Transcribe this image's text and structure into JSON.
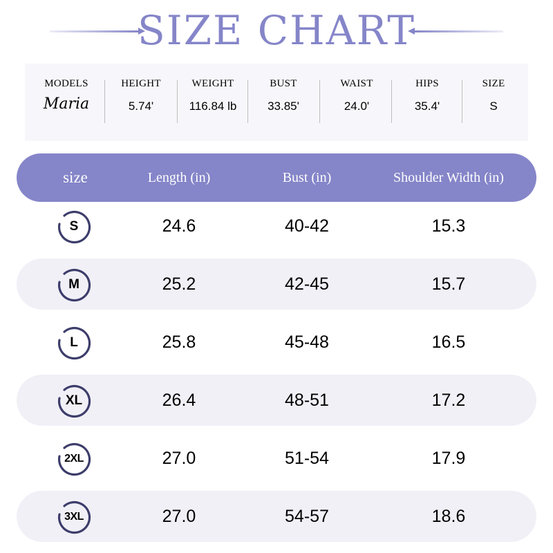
{
  "title": "SIZE CHART",
  "colors": {
    "accent": "#8585c9",
    "row_shade": "#f1f0f7",
    "badge_ring": "#3d3d6b"
  },
  "model": {
    "headers": [
      "MODELS",
      "HEIGHT",
      "WEIGHT",
      "BUST",
      "WAIST",
      "HIPS",
      "SIZE"
    ],
    "values": [
      "Maria",
      "5.74'",
      "116.84 lb",
      "33.85'",
      "24.0'",
      "35.4'",
      "S"
    ]
  },
  "table": {
    "headers": [
      "size",
      "Length (in)",
      "Bust (in)",
      "Shoulder Width (in)"
    ],
    "rows": [
      {
        "size": "S",
        "length": "24.6",
        "bust": "40-42",
        "shoulder": "15.3"
      },
      {
        "size": "M",
        "length": "25.2",
        "bust": "42-45",
        "shoulder": "15.7"
      },
      {
        "size": "L",
        "length": "25.8",
        "bust": "45-48",
        "shoulder": "16.5"
      },
      {
        "size": "XL",
        "length": "26.4",
        "bust": "48-51",
        "shoulder": "17.2"
      },
      {
        "size": "2XL",
        "length": "27.0",
        "bust": "51-54",
        "shoulder": "17.9"
      },
      {
        "size": "3XL",
        "length": "27.0",
        "bust": "54-57",
        "shoulder": "18.6"
      }
    ]
  }
}
